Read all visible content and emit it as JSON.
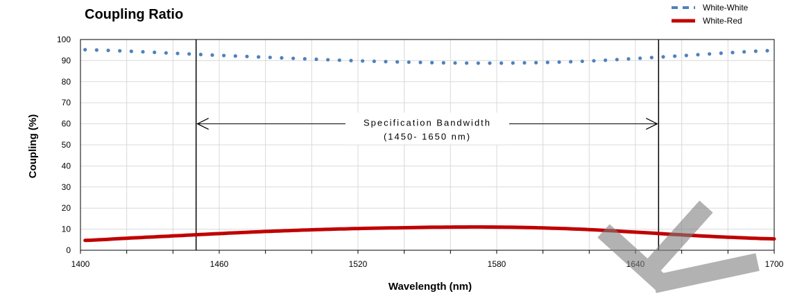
{
  "chart_data": {
    "type": "line",
    "title": "Coupling Ratio",
    "xlabel": "Wavelength (nm)",
    "ylabel": "Coupling  (%)",
    "xlim": [
      1400,
      1700
    ],
    "ylim": [
      0,
      100
    ],
    "x_ticks": [
      "1400",
      "1460",
      "1520",
      "1580",
      "1640",
      "1700"
    ],
    "y_ticks": [
      "0",
      "10",
      "20",
      "30",
      "40",
      "50",
      "60",
      "70",
      "80",
      "90",
      "100"
    ],
    "grid": true,
    "legend_position": "top-right",
    "series": [
      {
        "name": "White-White",
        "style": "dotted",
        "color": "#4f81bd",
        "x": [
          1400,
          1420,
          1440,
          1460,
          1480,
          1500,
          1520,
          1540,
          1560,
          1580,
          1600,
          1620,
          1640,
          1660,
          1680,
          1700
        ],
        "y": [
          95.2,
          94.5,
          93.5,
          92.5,
          91.6,
          90.7,
          89.9,
          89.3,
          88.9,
          88.8,
          89.1,
          89.8,
          91.0,
          92.3,
          93.7,
          94.8
        ]
      },
      {
        "name": "White-Red",
        "style": "solid",
        "color": "#c00000",
        "x": [
          1400,
          1420,
          1440,
          1460,
          1480,
          1500,
          1520,
          1540,
          1560,
          1580,
          1600,
          1620,
          1640,
          1660,
          1680,
          1700
        ],
        "y": [
          4.6,
          5.7,
          6.8,
          7.9,
          8.9,
          9.7,
          10.3,
          10.7,
          11.0,
          11.0,
          10.6,
          9.8,
          8.6,
          7.3,
          6.2,
          5.4
        ]
      }
    ],
    "annotations": {
      "line1": "Specification Bandwidth",
      "line2": "(1450- 1650 nm)",
      "band_start": 1450,
      "band_end": 1650,
      "arrow_y": 60
    }
  }
}
